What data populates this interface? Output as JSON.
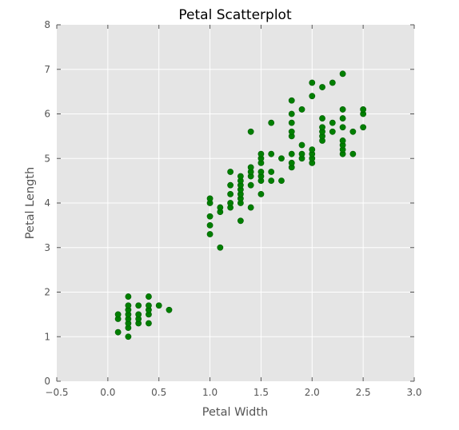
{
  "chart_data": {
    "type": "scatter",
    "title": "Petal Scatterplot",
    "xlabel": "Petal Width",
    "ylabel": "Petal Length",
    "xlim": [
      -0.5,
      3.0
    ],
    "ylim": [
      0,
      8
    ],
    "x_ticks": [
      -0.5,
      0.0,
      0.5,
      1.0,
      1.5,
      2.0,
      2.5,
      3.0
    ],
    "x_tick_labels": [
      "−0.5",
      "0.0",
      "0.5",
      "1.0",
      "1.5",
      "2.0",
      "2.5",
      "3.0"
    ],
    "y_ticks": [
      0,
      1,
      2,
      3,
      4,
      5,
      6,
      7,
      8
    ],
    "y_tick_labels": [
      "0",
      "1",
      "2",
      "3",
      "4",
      "5",
      "6",
      "7",
      "8"
    ],
    "grid": true,
    "background": "#e5e5e5",
    "marker_color": "#007f00",
    "points": [
      [
        0.1,
        1.1
      ],
      [
        0.1,
        1.4
      ],
      [
        0.1,
        1.5
      ],
      [
        0.2,
        1.0
      ],
      [
        0.2,
        1.2
      ],
      [
        0.2,
        1.3
      ],
      [
        0.2,
        1.4
      ],
      [
        0.2,
        1.5
      ],
      [
        0.2,
        1.6
      ],
      [
        0.2,
        1.7
      ],
      [
        0.2,
        1.9
      ],
      [
        0.3,
        1.3
      ],
      [
        0.3,
        1.4
      ],
      [
        0.3,
        1.5
      ],
      [
        0.3,
        1.7
      ],
      [
        0.4,
        1.3
      ],
      [
        0.4,
        1.5
      ],
      [
        0.4,
        1.6
      ],
      [
        0.4,
        1.7
      ],
      [
        0.4,
        1.9
      ],
      [
        0.5,
        1.7
      ],
      [
        0.6,
        1.6
      ],
      [
        1.0,
        3.3
      ],
      [
        1.0,
        3.5
      ],
      [
        1.0,
        3.7
      ],
      [
        1.0,
        4.0
      ],
      [
        1.0,
        4.1
      ],
      [
        1.1,
        3.0
      ],
      [
        1.1,
        3.8
      ],
      [
        1.1,
        3.9
      ],
      [
        1.2,
        3.9
      ],
      [
        1.2,
        4.0
      ],
      [
        1.2,
        4.2
      ],
      [
        1.2,
        4.4
      ],
      [
        1.2,
        4.7
      ],
      [
        1.3,
        3.6
      ],
      [
        1.3,
        4.0
      ],
      [
        1.3,
        4.1
      ],
      [
        1.3,
        4.2
      ],
      [
        1.3,
        4.3
      ],
      [
        1.3,
        4.4
      ],
      [
        1.3,
        4.5
      ],
      [
        1.3,
        4.6
      ],
      [
        1.4,
        3.9
      ],
      [
        1.4,
        4.4
      ],
      [
        1.4,
        4.6
      ],
      [
        1.4,
        4.7
      ],
      [
        1.4,
        4.8
      ],
      [
        1.4,
        5.6
      ],
      [
        1.5,
        4.2
      ],
      [
        1.5,
        4.5
      ],
      [
        1.5,
        4.6
      ],
      [
        1.5,
        4.7
      ],
      [
        1.5,
        4.9
      ],
      [
        1.5,
        5.0
      ],
      [
        1.5,
        5.1
      ],
      [
        1.6,
        4.5
      ],
      [
        1.6,
        4.7
      ],
      [
        1.6,
        5.1
      ],
      [
        1.6,
        5.8
      ],
      [
        1.7,
        4.5
      ],
      [
        1.7,
        5.0
      ],
      [
        1.8,
        4.8
      ],
      [
        1.8,
        4.9
      ],
      [
        1.8,
        5.1
      ],
      [
        1.8,
        5.5
      ],
      [
        1.8,
        5.6
      ],
      [
        1.8,
        5.8
      ],
      [
        1.8,
        6.0
      ],
      [
        1.8,
        6.3
      ],
      [
        1.9,
        5.0
      ],
      [
        1.9,
        5.1
      ],
      [
        1.9,
        5.3
      ],
      [
        1.9,
        6.1
      ],
      [
        2.0,
        4.9
      ],
      [
        2.0,
        5.0
      ],
      [
        2.0,
        5.1
      ],
      [
        2.0,
        5.2
      ],
      [
        2.0,
        6.4
      ],
      [
        2.0,
        6.7
      ],
      [
        2.1,
        5.4
      ],
      [
        2.1,
        5.5
      ],
      [
        2.1,
        5.6
      ],
      [
        2.1,
        5.7
      ],
      [
        2.1,
        5.9
      ],
      [
        2.1,
        6.6
      ],
      [
        2.2,
        5.6
      ],
      [
        2.2,
        5.8
      ],
      [
        2.2,
        6.7
      ],
      [
        2.3,
        5.1
      ],
      [
        2.3,
        5.2
      ],
      [
        2.3,
        5.3
      ],
      [
        2.3,
        5.4
      ],
      [
        2.3,
        5.7
      ],
      [
        2.3,
        5.9
      ],
      [
        2.3,
        6.1
      ],
      [
        2.3,
        6.9
      ],
      [
        2.4,
        5.1
      ],
      [
        2.4,
        5.6
      ],
      [
        2.5,
        5.7
      ],
      [
        2.5,
        6.0
      ],
      [
        2.5,
        6.1
      ]
    ]
  }
}
